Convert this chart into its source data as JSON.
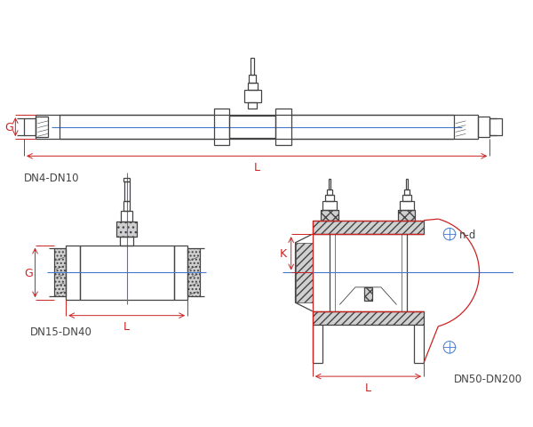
{
  "bg_color": "#ffffff",
  "line_color": "#444444",
  "dim_red": "#cc2222",
  "dim_blue": "#4477cc",
  "label_DN4": "DN4-DN10",
  "label_DN15": "DN15-DN40",
  "label_DN50": "DN50-DN200",
  "label_L": "L",
  "label_G": "G",
  "label_K": "K",
  "label_nd": "n-d"
}
